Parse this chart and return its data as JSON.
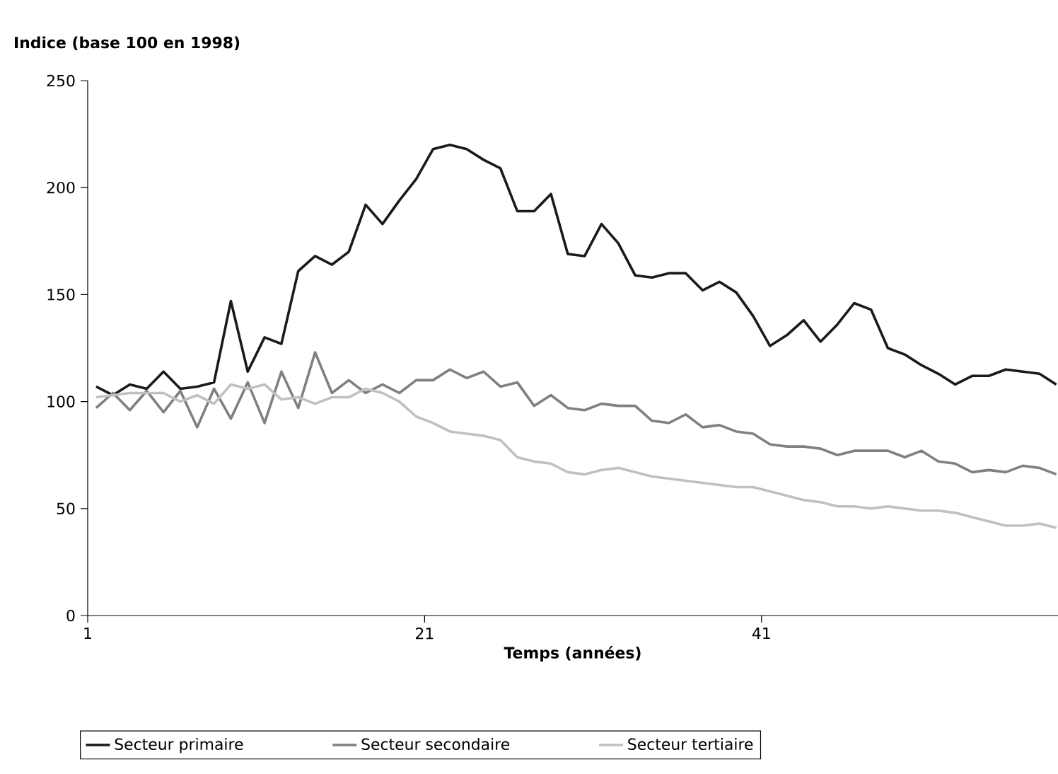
{
  "chart_data": {
    "type": "line",
    "xlabel": "Temps (années)",
    "ylabel": "Indice (base 100 en 1998)",
    "x": [
      1,
      2,
      3,
      4,
      5,
      6,
      7,
      8,
      9,
      10,
      11,
      12,
      13,
      14,
      15,
      16,
      17,
      18,
      19,
      20,
      21,
      22,
      23,
      24,
      25,
      26,
      27,
      28,
      29,
      30,
      31,
      32,
      33,
      34,
      35,
      36,
      37,
      38,
      39,
      40,
      41,
      42,
      43,
      44,
      45,
      46,
      47,
      48,
      49,
      50,
      51,
      52,
      53,
      54,
      55,
      56,
      57,
      58
    ],
    "xlim": [
      0.5,
      58.1
    ],
    "xticks": [
      {
        "value": 0.5,
        "label": "1"
      },
      {
        "value": 20.5,
        "label": "21"
      },
      {
        "value": 40.5,
        "label": "41"
      }
    ],
    "ylim": [
      0,
      250
    ],
    "yticks": [
      0,
      50,
      100,
      150,
      200,
      250
    ],
    "legend": "bottom",
    "marker": "none",
    "line_style": "solid",
    "series": [
      {
        "name": "Secteur primaire",
        "color": "#1a1a1a",
        "values": [
          107,
          103,
          108,
          106,
          114,
          106,
          107,
          109,
          147,
          114,
          130,
          127,
          161,
          168,
          164,
          170,
          192,
          183,
          194,
          204,
          218,
          220,
          218,
          213,
          209,
          189,
          189,
          197,
          169,
          168,
          183,
          174,
          159,
          158,
          160,
          160,
          152,
          156,
          151,
          140,
          126,
          131,
          138,
          128,
          136,
          146,
          143,
          125,
          122,
          117,
          113,
          108,
          112,
          112,
          115,
          114,
          113,
          108
        ]
      },
      {
        "name": "Secteur secondaire",
        "color": "#808080",
        "values": [
          97,
          104,
          96,
          105,
          95,
          105,
          88,
          106,
          92,
          109,
          90,
          114,
          97,
          123,
          104,
          110,
          104,
          108,
          104,
          110,
          110,
          115,
          111,
          114,
          107,
          109,
          98,
          103,
          97,
          96,
          99,
          98,
          98,
          91,
          90,
          94,
          88,
          89,
          86,
          85,
          80,
          79,
          79,
          78,
          75,
          77,
          77,
          77,
          74,
          77,
          72,
          71,
          67,
          68,
          67,
          70,
          69,
          66
        ]
      },
      {
        "name": "Secteur tertiaire",
        "color": "#c0c0c0",
        "values": [
          102,
          103,
          104,
          104,
          104,
          100,
          103,
          99,
          108,
          106,
          108,
          101,
          102,
          99,
          102,
          102,
          106,
          104,
          100,
          93,
          90,
          86,
          85,
          84,
          82,
          74,
          72,
          71,
          67,
          66,
          68,
          69,
          67,
          65,
          64,
          63,
          62,
          61,
          60,
          60,
          58,
          56,
          54,
          53,
          51,
          51,
          50,
          51,
          50,
          49,
          49,
          48,
          46,
          44,
          42,
          42,
          43,
          41
        ]
      }
    ]
  }
}
